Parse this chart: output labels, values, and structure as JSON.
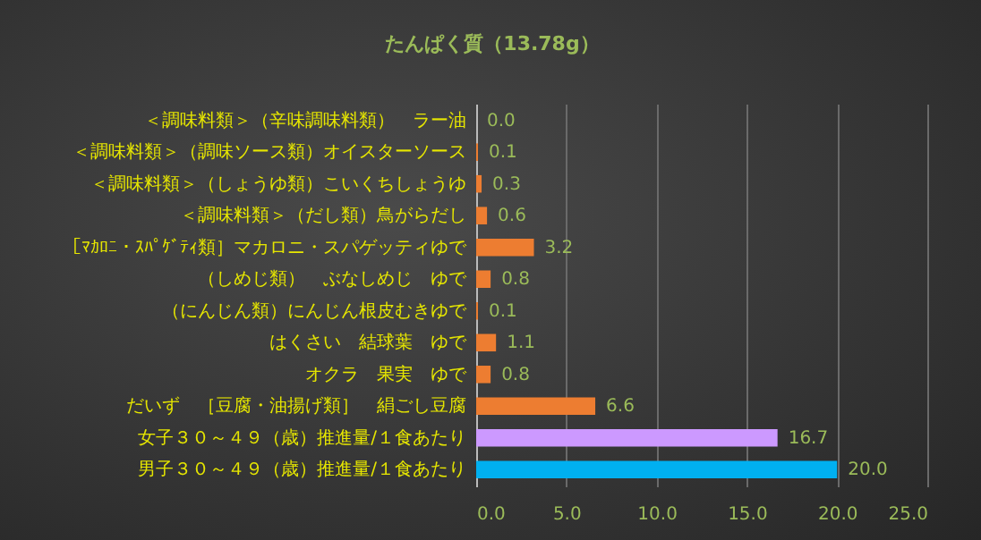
{
  "chart_data": {
    "type": "bar",
    "orientation": "horizontal",
    "title": "たんぱく質（13.78g）",
    "categories": [
      "＜調味料類＞（辛味調味料類）　ラー油",
      "＜調味料類＞（調味ソース類）オイスターソース",
      "＜調味料類＞（しょうゆ類）こいくちしょうゆ",
      "＜調味料類＞（だし類）鳥がらだし",
      "［ﾏｶﾛﾆ・ｽﾊﾟｹﾞﾃｨ類］マカロニ・スパゲッティゆで",
      "（しめじ類）　ぶなしめじ　ゆで",
      "（にんじん類）にんじん根皮むきゆで",
      "はくさい　結球葉　ゆで",
      "オクラ　果実　ゆで",
      "だいず　［豆腐・油揚げ類］　絹ごし豆腐",
      "女子３０～４９（歳）推進量/１食あたり",
      "男子３０～４９（歳）推進量/１食あたり"
    ],
    "values": [
      0.0,
      0.1,
      0.3,
      0.6,
      3.2,
      0.8,
      0.1,
      1.1,
      0.8,
      6.6,
      16.7,
      20.0
    ],
    "value_labels": [
      "0.0",
      "0.1",
      "0.3",
      "0.6",
      "3.2",
      "0.8",
      "0.1",
      "1.1",
      "0.8",
      "6.6",
      "16.7",
      "20.0"
    ],
    "colors": [
      "#ed7d31",
      "#ed7d31",
      "#ed7d31",
      "#ed7d31",
      "#ed7d31",
      "#ed7d31",
      "#ed7d31",
      "#ed7d31",
      "#ed7d31",
      "#ed7d31",
      "#cc99ff",
      "#00b0f0"
    ],
    "xlim": [
      0,
      25
    ],
    "xticks": [
      {
        "value": 0,
        "label": "0.0"
      },
      {
        "value": 5,
        "label": "5.0"
      },
      {
        "value": 10,
        "label": "10.0"
      },
      {
        "value": 15,
        "label": "15.0"
      },
      {
        "value": 20,
        "label": "20.0"
      },
      {
        "value": 25,
        "label": "25.0"
      }
    ],
    "grid": "x"
  }
}
